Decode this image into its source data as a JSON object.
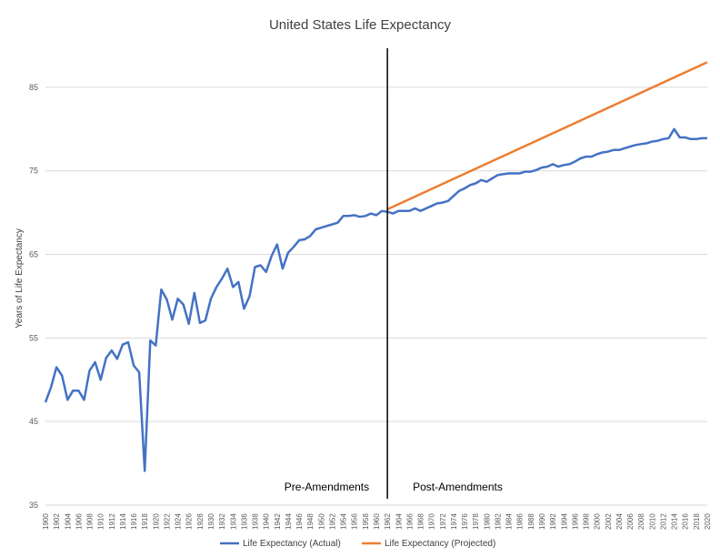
{
  "chart_data": {
    "type": "line",
    "title": "United States Life Expectancy",
    "xlabel": "",
    "ylabel": "Years of Life Expectancy",
    "xlim": [
      1900,
      2020
    ],
    "ylim": [
      35,
      90
    ],
    "yticks": [
      35,
      45,
      55,
      65,
      75,
      85
    ],
    "grid": true,
    "legend_position": "bottom",
    "colors": {
      "actual": "#4472C4",
      "projected": "#ED7D31",
      "divider": "#000000"
    },
    "divider": {
      "x": 1962,
      "left_label": "Pre-Amendments",
      "right_label": "Post-Amendments"
    },
    "series": [
      {
        "name": "Life Expectancy (Actual)",
        "x": [
          1900,
          1901,
          1902,
          1903,
          1904,
          1905,
          1906,
          1907,
          1908,
          1909,
          1910,
          1911,
          1912,
          1913,
          1914,
          1915,
          1916,
          1917,
          1918,
          1919,
          1920,
          1921,
          1922,
          1923,
          1924,
          1925,
          1926,
          1927,
          1928,
          1929,
          1930,
          1931,
          1932,
          1933,
          1934,
          1935,
          1936,
          1937,
          1938,
          1939,
          1940,
          1941,
          1942,
          1943,
          1944,
          1945,
          1946,
          1947,
          1948,
          1949,
          1950,
          1951,
          1952,
          1953,
          1954,
          1955,
          1956,
          1957,
          1958,
          1959,
          1960,
          1961,
          1962,
          1963,
          1964,
          1965,
          1966,
          1967,
          1968,
          1969,
          1970,
          1971,
          1972,
          1973,
          1974,
          1975,
          1976,
          1977,
          1978,
          1979,
          1980,
          1981,
          1982,
          1983,
          1984,
          1985,
          1986,
          1987,
          1988,
          1989,
          1990,
          1991,
          1992,
          1993,
          1994,
          1995,
          1996,
          1997,
          1998,
          1999,
          2000,
          2001,
          2002,
          2003,
          2004,
          2005,
          2006,
          2007,
          2008,
          2009,
          2010,
          2011,
          2012,
          2013,
          2014,
          2015,
          2016,
          2017,
          2018,
          2019,
          2020
        ],
        "y": [
          47.3,
          49.1,
          51.5,
          50.5,
          47.6,
          48.7,
          48.7,
          47.6,
          51.1,
          52.1,
          50.0,
          52.6,
          53.5,
          52.5,
          54.2,
          54.5,
          51.7,
          50.9,
          39.1,
          54.7,
          54.1,
          60.8,
          59.6,
          57.2,
          59.7,
          59.0,
          56.7,
          60.4,
          56.8,
          57.1,
          59.7,
          61.1,
          62.1,
          63.3,
          61.1,
          61.7,
          58.5,
          60.0,
          63.5,
          63.7,
          62.9,
          64.8,
          66.2,
          63.3,
          65.2,
          65.9,
          66.7,
          66.8,
          67.2,
          68.0,
          68.2,
          68.4,
          68.6,
          68.8,
          69.6,
          69.6,
          69.7,
          69.5,
          69.6,
          69.9,
          69.7,
          70.2,
          70.1,
          69.9,
          70.2,
          70.2,
          70.2,
          70.5,
          70.2,
          70.5,
          70.8,
          71.1,
          71.2,
          71.4,
          72.0,
          72.6,
          72.9,
          73.3,
          73.5,
          73.9,
          73.7,
          74.1,
          74.5,
          74.6,
          74.7,
          74.7,
          74.7,
          74.9,
          74.9,
          75.1,
          75.4,
          75.5,
          75.8,
          75.5,
          75.7,
          75.8,
          76.1,
          76.5,
          76.7,
          76.7,
          77.0,
          77.2,
          77.3,
          77.5,
          77.5,
          77.7,
          77.9,
          78.1,
          78.2,
          78.3,
          78.5,
          78.6,
          78.8,
          78.9,
          80.0,
          79.0,
          79.0,
          78.8,
          78.8,
          78.9,
          78.9
        ]
      },
      {
        "name": "Life Expectancy (Projected)",
        "x": [
          1962,
          2020
        ],
        "y": [
          70.4,
          88.0
        ]
      }
    ]
  }
}
